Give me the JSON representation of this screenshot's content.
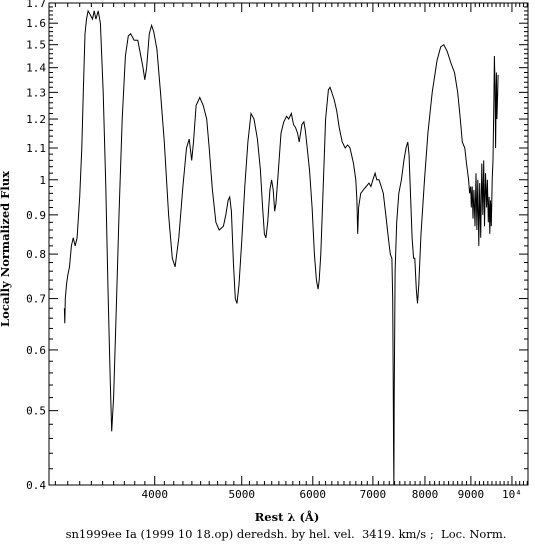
{
  "chart_data": {
    "type": "line",
    "caption": "sn1999ee Ia (1999 10 18.op) deredsh. by hel. vel.  3419. km/s ;  Loc. Norm.",
    "xlabel": "Rest λ (Å)",
    "ylabel": "Locally Normalized Flux",
    "x_scale": "log",
    "y_scale": "log",
    "xlim": [
      3050,
      10420
    ],
    "ylim": [
      0.4,
      1.7
    ],
    "x_ticks": [
      {
        "value": 4000,
        "label": "4000"
      },
      {
        "value": 5000,
        "label": "5000"
      },
      {
        "value": 6000,
        "label": "6000"
      },
      {
        "value": 7000,
        "label": "7000"
      },
      {
        "value": 8000,
        "label": "8000"
      },
      {
        "value": 9000,
        "label": "9000"
      },
      {
        "value": 10000,
        "label": "10⁴"
      }
    ],
    "y_ticks": [
      {
        "value": 0.4,
        "label": "0.4"
      },
      {
        "value": 0.5,
        "label": "0.5"
      },
      {
        "value": 0.6,
        "label": "0.6"
      },
      {
        "value": 0.7,
        "label": "0.7"
      },
      {
        "value": 0.8,
        "label": "0.8"
      },
      {
        "value": 0.9,
        "label": "0.9"
      },
      {
        "value": 1.0,
        "label": "1"
      },
      {
        "value": 1.1,
        "label": "1.1"
      },
      {
        "value": 1.2,
        "label": "1.2"
      },
      {
        "value": 1.3,
        "label": "1.3"
      },
      {
        "value": 1.4,
        "label": "1.4"
      },
      {
        "value": 1.5,
        "label": "1.5"
      },
      {
        "value": 1.6,
        "label": "1.6"
      },
      {
        "value": 1.7,
        "label": "1.7"
      }
    ],
    "grid": false,
    "series": [
      {
        "color": "#000000",
        "points": [
          [
            3173,
            0.68
          ],
          [
            3176,
            0.65
          ],
          [
            3180,
            0.7
          ],
          [
            3190,
            0.73
          ],
          [
            3200,
            0.75
          ],
          [
            3215,
            0.77
          ],
          [
            3230,
            0.82
          ],
          [
            3245,
            0.84
          ],
          [
            3262,
            0.82
          ],
          [
            3278,
            0.84
          ],
          [
            3300,
            0.95
          ],
          [
            3318,
            1.1
          ],
          [
            3332,
            1.33
          ],
          [
            3345,
            1.55
          ],
          [
            3358,
            1.62
          ],
          [
            3372,
            1.66
          ],
          [
            3392,
            1.64
          ],
          [
            3410,
            1.62
          ],
          [
            3425,
            1.66
          ],
          [
            3440,
            1.62
          ],
          [
            3460,
            1.66
          ],
          [
            3480,
            1.6
          ],
          [
            3505,
            1.3
          ],
          [
            3528,
            0.98
          ],
          [
            3548,
            0.72
          ],
          [
            3568,
            0.55
          ],
          [
            3582,
            0.47
          ],
          [
            3600,
            0.52
          ],
          [
            3625,
            0.68
          ],
          [
            3650,
            0.9
          ],
          [
            3680,
            1.2
          ],
          [
            3710,
            1.45
          ],
          [
            3738,
            1.54
          ],
          [
            3760,
            1.55
          ],
          [
            3795,
            1.52
          ],
          [
            3830,
            1.52
          ],
          [
            3860,
            1.45
          ],
          [
            3882,
            1.4
          ],
          [
            3900,
            1.35
          ],
          [
            3918,
            1.4
          ],
          [
            3945,
            1.55
          ],
          [
            3968,
            1.59
          ],
          [
            3990,
            1.56
          ],
          [
            4022,
            1.48
          ],
          [
            4060,
            1.3
          ],
          [
            4100,
            1.12
          ],
          [
            4145,
            0.9
          ],
          [
            4185,
            0.79
          ],
          [
            4215,
            0.77
          ],
          [
            4255,
            0.84
          ],
          [
            4300,
            0.98
          ],
          [
            4340,
            1.1
          ],
          [
            4370,
            1.13
          ],
          [
            4398,
            1.06
          ],
          [
            4418,
            1.12
          ],
          [
            4448,
            1.25
          ],
          [
            4490,
            1.28
          ],
          [
            4530,
            1.25
          ],
          [
            4570,
            1.2
          ],
          [
            4600,
            1.1
          ],
          [
            4638,
            0.97
          ],
          [
            4680,
            0.88
          ],
          [
            4720,
            0.86
          ],
          [
            4770,
            0.87
          ],
          [
            4800,
            0.9
          ],
          [
            4828,
            0.94
          ],
          [
            4848,
            0.95
          ],
          [
            4870,
            0.91
          ],
          [
            4895,
            0.78
          ],
          [
            4918,
            0.7
          ],
          [
            4940,
            0.69
          ],
          [
            4965,
            0.73
          ],
          [
            5000,
            0.83
          ],
          [
            5040,
            0.98
          ],
          [
            5080,
            1.12
          ],
          [
            5120,
            1.22
          ],
          [
            5160,
            1.2
          ],
          [
            5205,
            1.13
          ],
          [
            5245,
            1.03
          ],
          [
            5275,
            0.92
          ],
          [
            5300,
            0.85
          ],
          [
            5320,
            0.84
          ],
          [
            5345,
            0.88
          ],
          [
            5375,
            0.97
          ],
          [
            5398,
            1.0
          ],
          [
            5420,
            0.97
          ],
          [
            5442,
            0.91
          ],
          [
            5458,
            0.93
          ],
          [
            5490,
            1.02
          ],
          [
            5530,
            1.15
          ],
          [
            5570,
            1.19
          ],
          [
            5610,
            1.21
          ],
          [
            5640,
            1.2
          ],
          [
            5680,
            1.22
          ],
          [
            5710,
            1.18
          ],
          [
            5740,
            1.17
          ],
          [
            5770,
            1.15
          ],
          [
            5795,
            1.12
          ],
          [
            5835,
            1.18
          ],
          [
            5865,
            1.19
          ],
          [
            5885,
            1.16
          ],
          [
            5910,
            1.11
          ],
          [
            5950,
            1.03
          ],
          [
            5990,
            0.92
          ],
          [
            6025,
            0.8
          ],
          [
            6055,
            0.74
          ],
          [
            6082,
            0.72
          ],
          [
            6100,
            0.74
          ],
          [
            6125,
            0.8
          ],
          [
            6160,
            0.97
          ],
          [
            6200,
            1.2
          ],
          [
            6245,
            1.31
          ],
          [
            6270,
            1.32
          ],
          [
            6300,
            1.3
          ],
          [
            6340,
            1.27
          ],
          [
            6380,
            1.23
          ],
          [
            6420,
            1.17
          ],
          [
            6470,
            1.12
          ],
          [
            6520,
            1.1
          ],
          [
            6560,
            1.11
          ],
          [
            6600,
            1.1
          ],
          [
            6660,
            1.05
          ],
          [
            6700,
            1.0
          ],
          [
            6718,
            0.94
          ],
          [
            6732,
            0.85
          ],
          [
            6748,
            0.92
          ],
          [
            6785,
            0.96
          ],
          [
            6830,
            0.97
          ],
          [
            6880,
            0.98
          ],
          [
            6930,
            0.99
          ],
          [
            6965,
            0.98
          ],
          [
            7000,
            1.0
          ],
          [
            7040,
            1.02
          ],
          [
            7070,
            1.0
          ],
          [
            7110,
            1.0
          ],
          [
            7150,
            0.98
          ],
          [
            7190,
            0.96
          ],
          [
            7235,
            0.9
          ],
          [
            7275,
            0.85
          ],
          [
            7300,
            0.82
          ],
          [
            7320,
            0.8
          ],
          [
            7350,
            0.79
          ],
          [
            7365,
            0.7
          ],
          [
            7375,
            0.55
          ],
          [
            7382,
            0.44
          ],
          [
            7388,
            0.39
          ],
          [
            7394,
            0.52
          ],
          [
            7410,
            0.76
          ],
          [
            7440,
            0.88
          ],
          [
            7480,
            0.96
          ],
          [
            7530,
            1.0
          ],
          [
            7580,
            1.06
          ],
          [
            7620,
            1.1
          ],
          [
            7655,
            1.12
          ],
          [
            7680,
            1.08
          ],
          [
            7710,
            0.95
          ],
          [
            7740,
            0.84
          ],
          [
            7770,
            0.79
          ],
          [
            7795,
            0.79
          ],
          [
            7825,
            0.72
          ],
          [
            7848,
            0.69
          ],
          [
            7875,
            0.73
          ],
          [
            7920,
            0.85
          ],
          [
            7990,
            1.0
          ],
          [
            8060,
            1.15
          ],
          [
            8150,
            1.3
          ],
          [
            8250,
            1.43
          ],
          [
            8330,
            1.49
          ],
          [
            8395,
            1.5
          ],
          [
            8470,
            1.47
          ],
          [
            8550,
            1.42
          ],
          [
            8630,
            1.38
          ],
          [
            8700,
            1.3
          ],
          [
            8760,
            1.2
          ],
          [
            8805,
            1.12
          ],
          [
            8860,
            1.1
          ],
          [
            8900,
            1.05
          ],
          [
            8948,
            1.0
          ],
          [
            8970,
            0.96
          ],
          [
            8995,
            0.98
          ],
          [
            9010,
            0.92
          ],
          [
            9030,
            0.98
          ],
          [
            9050,
            0.89
          ],
          [
            9070,
            0.97
          ],
          [
            9095,
            0.87
          ],
          [
            9120,
            1.02
          ],
          [
            9140,
            0.86
          ],
          [
            9160,
            1.0
          ],
          [
            9185,
            0.82
          ],
          [
            9205,
            0.99
          ],
          [
            9230,
            0.84
          ],
          [
            9255,
            1.05
          ],
          [
            9280,
            0.9
          ],
          [
            9300,
            1.06
          ],
          [
            9320,
            0.87
          ],
          [
            9345,
            1.02
          ],
          [
            9370,
            0.92
          ],
          [
            9390,
            1.0
          ],
          [
            9410,
            0.88
          ],
          [
            9430,
            0.95
          ],
          [
            9448,
            0.85
          ],
          [
            9465,
            0.94
          ],
          [
            9485,
            0.87
          ],
          [
            9505,
            1.0
          ],
          [
            9525,
            1.06
          ],
          [
            9545,
            1.25
          ],
          [
            9560,
            1.45
          ],
          [
            9575,
            1.33
          ],
          [
            9590,
            1.1
          ],
          [
            9608,
            1.38
          ],
          [
            9622,
            1.2
          ],
          [
            9640,
            1.3
          ],
          [
            9650,
            1.37
          ]
        ]
      }
    ]
  }
}
